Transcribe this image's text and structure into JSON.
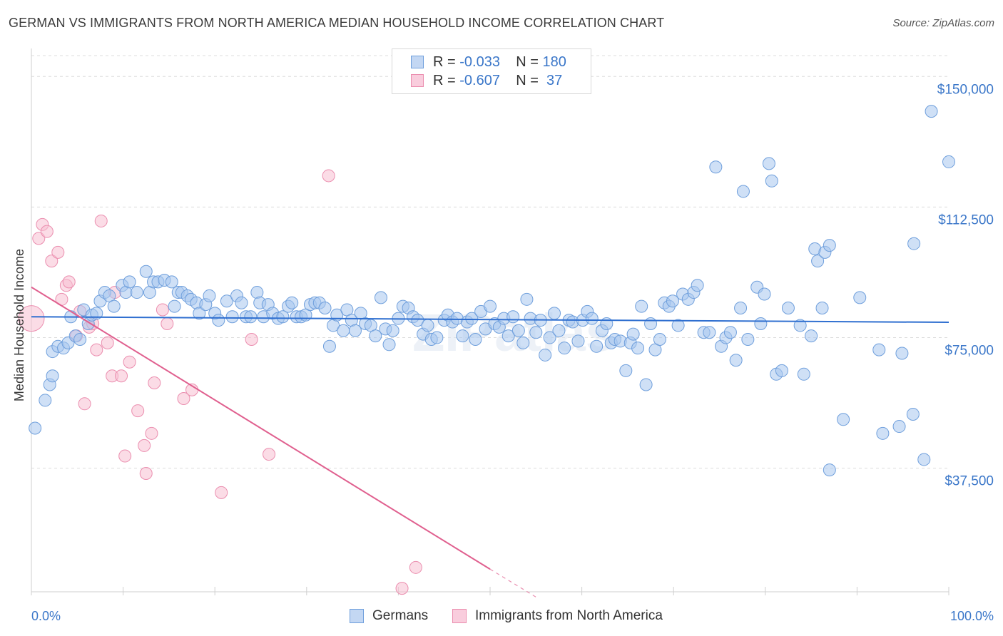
{
  "title": "GERMAN VS IMMIGRANTS FROM NORTH AMERICA MEDIAN HOUSEHOLD INCOME CORRELATION CHART",
  "source": "Source: ZipAtlas.com",
  "watermark": "ZIPatlas",
  "legend": {
    "rows": [
      {
        "r_label": "R = ",
        "r_value": "-0.033",
        "n_label": "N = ",
        "n_value": "180"
      },
      {
        "r_label": "R = ",
        "r_value": "-0.607",
        "n_label": "N = ",
        "n_value": " 37"
      }
    ]
  },
  "bottom_legend": [
    "Germans",
    "Immigrants from North America"
  ],
  "colors": {
    "blue_fill": "#a8c6ef",
    "blue_stroke": "#6f9fdc",
    "blue_line": "#2f6fd0",
    "pink_fill": "#f7c0d2",
    "pink_stroke": "#eb8eaf",
    "pink_line": "#e0608f",
    "accent_text": "#3b77c9"
  },
  "chart_data": {
    "type": "scatter",
    "title": "GERMAN VS IMMIGRANTS FROM NORTH AMERICA MEDIAN HOUSEHOLD INCOME CORRELATION CHART",
    "xlabel": "",
    "ylabel": "Median Household Income",
    "x_tick_labels": [
      "0.0%",
      "100.0%"
    ],
    "y_tick_labels": [
      "$37,500",
      "$75,000",
      "$112,500",
      "$150,000"
    ],
    "y_ticks": [
      37500,
      75000,
      112500,
      150000
    ],
    "xlim": [
      0,
      100
    ],
    "ylim": [
      2000,
      156000
    ],
    "grid": true,
    "legend_placement": "top-center",
    "series": [
      {
        "name": "Germans",
        "r": -0.033,
        "n": 180,
        "trend": {
          "x": [
            0,
            100
          ],
          "y": [
            81000,
            79400
          ]
        },
        "points": [
          [
            0.4,
            49000
          ],
          [
            1.5,
            57000
          ],
          [
            2.0,
            61500
          ],
          [
            2.3,
            64000
          ],
          [
            2.3,
            71000
          ],
          [
            2.9,
            72500
          ],
          [
            3.5,
            72000
          ],
          [
            4.0,
            73500
          ],
          [
            4.3,
            81000
          ],
          [
            4.8,
            75500
          ],
          [
            5.3,
            74500
          ],
          [
            5.7,
            83000
          ],
          [
            6.2,
            79000
          ],
          [
            6.6,
            81500
          ],
          [
            7.1,
            82000
          ],
          [
            7.5,
            85500
          ],
          [
            8.0,
            88000
          ],
          [
            8.5,
            87000
          ],
          [
            9.0,
            84000
          ],
          [
            9.9,
            90000
          ],
          [
            10.3,
            88000
          ],
          [
            10.7,
            91000
          ],
          [
            11.5,
            88000
          ],
          [
            12.5,
            94000
          ],
          [
            12.9,
            88000
          ],
          [
            13.3,
            91000
          ],
          [
            13.8,
            91000
          ],
          [
            14.5,
            91500
          ],
          [
            15.3,
            91000
          ],
          [
            15.6,
            84000
          ],
          [
            16.0,
            88000
          ],
          [
            16.4,
            88000
          ],
          [
            17.0,
            87000
          ],
          [
            17.4,
            86000
          ],
          [
            18.0,
            85000
          ],
          [
            18.3,
            82000
          ],
          [
            19.0,
            84500
          ],
          [
            19.4,
            87000
          ],
          [
            20.0,
            82000
          ],
          [
            20.4,
            80000
          ],
          [
            21.3,
            85500
          ],
          [
            21.9,
            81000
          ],
          [
            22.4,
            87000
          ],
          [
            22.9,
            85000
          ],
          [
            23.4,
            81000
          ],
          [
            23.9,
            81000
          ],
          [
            24.6,
            88000
          ],
          [
            24.9,
            85000
          ],
          [
            25.3,
            81000
          ],
          [
            25.8,
            84500
          ],
          [
            26.3,
            82000
          ],
          [
            26.9,
            80500
          ],
          [
            27.4,
            81000
          ],
          [
            28.0,
            84000
          ],
          [
            28.4,
            85000
          ],
          [
            28.9,
            81000
          ],
          [
            29.4,
            81000
          ],
          [
            29.9,
            81500
          ],
          [
            30.4,
            84500
          ],
          [
            30.9,
            85000
          ],
          [
            31.4,
            85000
          ],
          [
            32.0,
            83500
          ],
          [
            32.5,
            72500
          ],
          [
            32.9,
            78500
          ],
          [
            33.3,
            81500
          ],
          [
            34.0,
            77000
          ],
          [
            34.4,
            83000
          ],
          [
            34.9,
            80000
          ],
          [
            35.3,
            77000
          ],
          [
            35.9,
            82000
          ],
          [
            36.4,
            79000
          ],
          [
            37.0,
            78500
          ],
          [
            37.5,
            75500
          ],
          [
            38.1,
            86500
          ],
          [
            38.6,
            77500
          ],
          [
            39.0,
            73000
          ],
          [
            39.4,
            77000
          ],
          [
            40.0,
            80500
          ],
          [
            40.5,
            84000
          ],
          [
            41.1,
            83500
          ],
          [
            41.6,
            81000
          ],
          [
            42.1,
            80000
          ],
          [
            42.7,
            76000
          ],
          [
            43.2,
            78500
          ],
          [
            43.6,
            74500
          ],
          [
            44.2,
            75000
          ],
          [
            45.0,
            80000
          ],
          [
            45.4,
            81500
          ],
          [
            45.9,
            79500
          ],
          [
            46.4,
            80500
          ],
          [
            47.0,
            75500
          ],
          [
            47.5,
            79500
          ],
          [
            48.0,
            80500
          ],
          [
            48.4,
            74500
          ],
          [
            49.0,
            82500
          ],
          [
            49.5,
            77500
          ],
          [
            50.0,
            84000
          ],
          [
            50.5,
            79000
          ],
          [
            51.0,
            78000
          ],
          [
            51.5,
            80500
          ],
          [
            52.0,
            75500
          ],
          [
            52.5,
            81000
          ],
          [
            53.1,
            77000
          ],
          [
            53.6,
            73500
          ],
          [
            54.0,
            86000
          ],
          [
            54.4,
            80500
          ],
          [
            55.0,
            76500
          ],
          [
            55.5,
            80000
          ],
          [
            56.0,
            70000
          ],
          [
            56.5,
            75000
          ],
          [
            57.0,
            82000
          ],
          [
            57.5,
            77000
          ],
          [
            58.1,
            72000
          ],
          [
            58.6,
            80000
          ],
          [
            59.0,
            79500
          ],
          [
            59.6,
            74000
          ],
          [
            60.1,
            80000
          ],
          [
            60.6,
            82500
          ],
          [
            61.1,
            80500
          ],
          [
            61.6,
            72500
          ],
          [
            62.2,
            77000
          ],
          [
            62.7,
            79000
          ],
          [
            63.2,
            73500
          ],
          [
            63.6,
            74500
          ],
          [
            64.2,
            74000
          ],
          [
            64.8,
            65500
          ],
          [
            65.3,
            73500
          ],
          [
            65.6,
            76000
          ],
          [
            66.1,
            72000
          ],
          [
            66.5,
            84000
          ],
          [
            67.0,
            61500
          ],
          [
            67.5,
            79000
          ],
          [
            68.0,
            71500
          ],
          [
            68.5,
            74500
          ],
          [
            69.0,
            85000
          ],
          [
            69.5,
            84000
          ],
          [
            69.9,
            85500
          ],
          [
            70.5,
            78500
          ],
          [
            71.0,
            87500
          ],
          [
            71.6,
            86000
          ],
          [
            72.2,
            88000
          ],
          [
            72.6,
            90000
          ],
          [
            73.3,
            76500
          ],
          [
            73.9,
            76500
          ],
          [
            74.6,
            124000
          ],
          [
            75.2,
            72500
          ],
          [
            75.7,
            75000
          ],
          [
            76.2,
            76500
          ],
          [
            76.8,
            68500
          ],
          [
            77.3,
            83500
          ],
          [
            77.6,
            117000
          ],
          [
            78.1,
            74500
          ],
          [
            79.1,
            89500
          ],
          [
            79.5,
            79000
          ],
          [
            79.9,
            87500
          ],
          [
            80.4,
            125000
          ],
          [
            80.7,
            120000
          ],
          [
            81.2,
            64500
          ],
          [
            81.8,
            65500
          ],
          [
            82.5,
            83500
          ],
          [
            83.8,
            78500
          ],
          [
            84.2,
            64500
          ],
          [
            85.0,
            75500
          ],
          [
            85.4,
            100500
          ],
          [
            85.7,
            97000
          ],
          [
            86.2,
            83500
          ],
          [
            86.5,
            99500
          ],
          [
            87.0,
            101500
          ],
          [
            88.5,
            51500
          ],
          [
            90.3,
            86500
          ],
          [
            92.4,
            71500
          ],
          [
            92.8,
            47500
          ],
          [
            94.6,
            49500
          ],
          [
            94.9,
            70500
          ],
          [
            96.1,
            53000
          ],
          [
            96.2,
            102000
          ],
          [
            97.3,
            40000
          ],
          [
            98.1,
            140000
          ],
          [
            100.0,
            125500
          ],
          [
            87.0,
            37000
          ]
        ]
      },
      {
        "name": "Immigrants from North America",
        "r": -0.607,
        "n": 37,
        "trend": {
          "x": [
            0,
            50
          ],
          "y": [
            89500,
            8500
          ],
          "dashed_to": [
            55,
            500
          ]
        },
        "points": [
          [
            0.0,
            80500
          ],
          [
            0.8,
            103500
          ],
          [
            1.2,
            107500
          ],
          [
            1.7,
            105500
          ],
          [
            2.2,
            97000
          ],
          [
            2.9,
            99500
          ],
          [
            3.3,
            86000
          ],
          [
            3.8,
            90000
          ],
          [
            4.1,
            91000
          ],
          [
            4.9,
            75500
          ],
          [
            5.3,
            82500
          ],
          [
            5.8,
            56000
          ],
          [
            6.3,
            78000
          ],
          [
            6.7,
            79000
          ],
          [
            7.1,
            71500
          ],
          [
            7.6,
            108500
          ],
          [
            8.3,
            73500
          ],
          [
            8.8,
            64000
          ],
          [
            9.1,
            88000
          ],
          [
            9.8,
            64000
          ],
          [
            10.2,
            41000
          ],
          [
            10.7,
            68000
          ],
          [
            11.6,
            54000
          ],
          [
            12.3,
            44000
          ],
          [
            12.5,
            36000
          ],
          [
            13.1,
            47500
          ],
          [
            13.4,
            62000
          ],
          [
            14.3,
            83000
          ],
          [
            14.8,
            79000
          ],
          [
            16.6,
            57500
          ],
          [
            17.5,
            60000
          ],
          [
            20.7,
            30500
          ],
          [
            24.0,
            74500
          ],
          [
            25.9,
            41500
          ],
          [
            32.4,
            121500
          ],
          [
            40.4,
            3000
          ],
          [
            41.9,
            9000
          ]
        ]
      }
    ]
  }
}
